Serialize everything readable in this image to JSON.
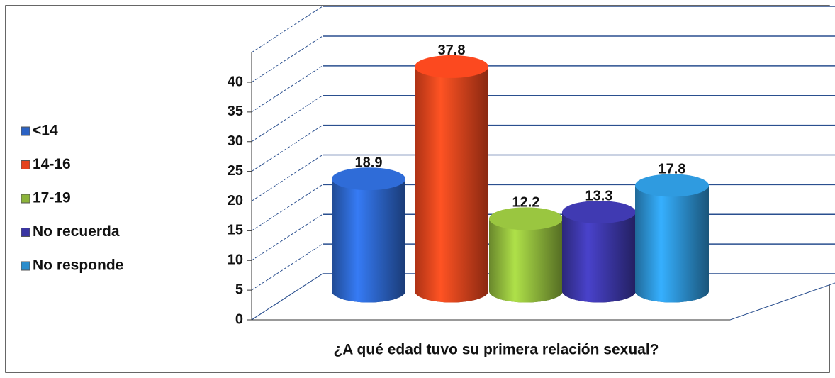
{
  "chart_data": {
    "type": "bar",
    "x_label": "¿A qué edad tuvo su primera relación sexual?",
    "categories": [
      "<14",
      "14-16",
      "17-19",
      "No recuerda",
      "No responde"
    ],
    "values": [
      18.9,
      37.8,
      12.2,
      13.3,
      17.8
    ],
    "colors": [
      "#2b62c4",
      "#e5421c",
      "#8cb43a",
      "#3a35a2",
      "#2b8dcc"
    ],
    "ylim": [
      0,
      40
    ],
    "yticks": [
      0,
      5,
      10,
      15,
      20,
      25,
      30,
      35,
      40
    ],
    "grid": true,
    "legend": "left"
  }
}
